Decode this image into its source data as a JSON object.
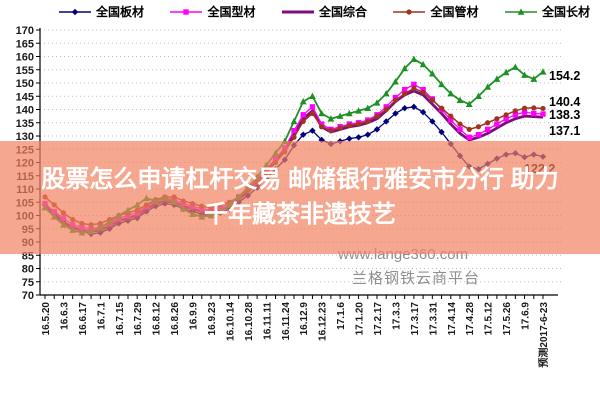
{
  "overlay": {
    "line1": "股票怎么申请杠杆交易 邮储银行雅安市分行 助力",
    "line2": "千年藏茶非遗技艺"
  },
  "watermark": {
    "site": "www.lange360.com",
    "platform": "兰格钢铁云商平台"
  },
  "chart_data": {
    "type": "line",
    "title": "",
    "xlabel": "",
    "ylabel": "",
    "ylim": [
      70,
      170
    ],
    "ytick_step": 5,
    "y_ticks": [
      70,
      75,
      80,
      85,
      90,
      95,
      100,
      105,
      110,
      115,
      120,
      125,
      130,
      135,
      140,
      145,
      150,
      155,
      160,
      165,
      170
    ],
    "grid": "horizontal-dotted",
    "legend_position": "top",
    "x_labels": [
      "16.5.20",
      "16.6.3",
      "16.6.17",
      "16.7.1",
      "16.7.15",
      "16.7.29",
      "16.8.12",
      "16.8.26",
      "16.9.9",
      "16.9.23",
      "16.10.14",
      "16.10.28",
      "16.11.11",
      "16.11.24",
      "16.12.9",
      "16.12.23",
      "17.1.6",
      "17.1.20",
      "17.2.17",
      "17.3.3",
      "17.3.17",
      "17.3.31",
      "17.4.14",
      "17.4.28",
      "17.5.12",
      "17.5.26",
      "17.6.9",
      "预测2017-6-23"
    ],
    "series": [
      {
        "name": "全国板材",
        "marker": "diamond",
        "color": "#00007E",
        "end_label": "122.2",
        "label_at": [
          524,
          173
        ],
        "values": [
          104,
          101,
          98,
          95.5,
          94,
          93,
          93.5,
          95,
          97,
          98,
          99,
          101.5,
          103.5,
          104.5,
          104,
          102.5,
          101.5,
          100.5,
          100,
          101,
          102.5,
          105,
          107.5,
          110.5,
          114,
          117.5,
          121,
          126.5,
          130.5,
          132,
          128.5,
          127,
          128,
          129,
          129.5,
          130.5,
          132.5,
          135.5,
          138.5,
          140.5,
          141,
          139,
          135.5,
          131.5,
          127,
          122.5,
          118.5,
          117.5,
          119.5,
          121.5,
          123,
          123.5,
          122,
          123,
          122.2
        ]
      },
      {
        "name": "全国型材",
        "marker": "square",
        "color": "#FF00FF",
        "end_label": "138.3",
        "label_at": [
          549,
          119
        ],
        "values": [
          104.5,
          101.5,
          99,
          96.5,
          95.5,
          95,
          95.5,
          97,
          99,
          100,
          101,
          103.5,
          105.5,
          106.5,
          106,
          104.5,
          103.5,
          102.5,
          102,
          103,
          104.5,
          107,
          110,
          113.5,
          117.5,
          121.5,
          125.5,
          132,
          138,
          141,
          134.5,
          132.5,
          133.5,
          134.5,
          135,
          136,
          138,
          141,
          144.5,
          147.5,
          149.5,
          147.5,
          144,
          140,
          136,
          132.5,
          129.5,
          130.5,
          132.5,
          134.5,
          136.5,
          138,
          139,
          138.5,
          138.3
        ]
      },
      {
        "name": "全国综合",
        "marker": "none",
        "color": "#7B0E7B",
        "end_label": "137.1",
        "label_at": [
          549,
          135
        ],
        "values": [
          103.5,
          100.5,
          97.5,
          95.5,
          94.5,
          94,
          94.5,
          96,
          98,
          99,
          100,
          102.5,
          104.5,
          105.5,
          105,
          103.5,
          102.5,
          101.5,
          101,
          102,
          103.5,
          106,
          109,
          112.5,
          116.5,
          120.5,
          124.5,
          130.5,
          136.5,
          139.5,
          133.5,
          131.5,
          132.5,
          133.5,
          134,
          135,
          136.5,
          139.5,
          143,
          145.5,
          147,
          145.5,
          142,
          138.5,
          134.5,
          131,
          128.5,
          129.5,
          131,
          133,
          135,
          136.5,
          137.5,
          137.3,
          137.1
        ]
      },
      {
        "name": "全国管材",
        "marker": "circle",
        "color": "#A0341E",
        "end_label": "140.4",
        "label_at": [
          549,
          106
        ],
        "values": [
          107,
          104,
          101,
          98.5,
          97,
          96.5,
          97,
          98.5,
          100,
          101,
          102,
          104,
          106,
          107,
          107,
          105.5,
          104.5,
          103.5,
          103,
          104,
          105,
          107,
          109.5,
          112.5,
          116,
          120,
          124,
          129.5,
          135.5,
          138.5,
          133.5,
          132,
          133,
          134,
          134.5,
          135.5,
          137.5,
          140,
          143.5,
          146,
          148,
          146.5,
          143.5,
          140.5,
          137.5,
          134.5,
          132.5,
          133.5,
          135,
          136.5,
          138,
          139.5,
          140.5,
          140.6,
          140.4
        ]
      },
      {
        "name": "全国长材",
        "marker": "triangle",
        "color": "#1E9125",
        "end_label": "154.2",
        "label_at": [
          549,
          80
        ],
        "values": [
          103,
          99.5,
          96.5,
          94.5,
          93.5,
          94,
          95.5,
          97.5,
          100,
          102,
          104,
          106.5,
          105.5,
          106.5,
          105,
          102.5,
          100.5,
          99.5,
          100,
          101.5,
          104,
          107,
          110.5,
          114.5,
          119,
          123.5,
          128,
          135.5,
          143,
          145,
          138.5,
          136.5,
          137.5,
          138.5,
          139.5,
          140.5,
          142.5,
          146,
          150.5,
          155.5,
          159,
          157,
          153.5,
          149.5,
          146,
          143.5,
          142,
          145,
          148.5,
          151.5,
          154,
          156,
          153,
          151.5,
          154.2
        ]
      }
    ]
  }
}
